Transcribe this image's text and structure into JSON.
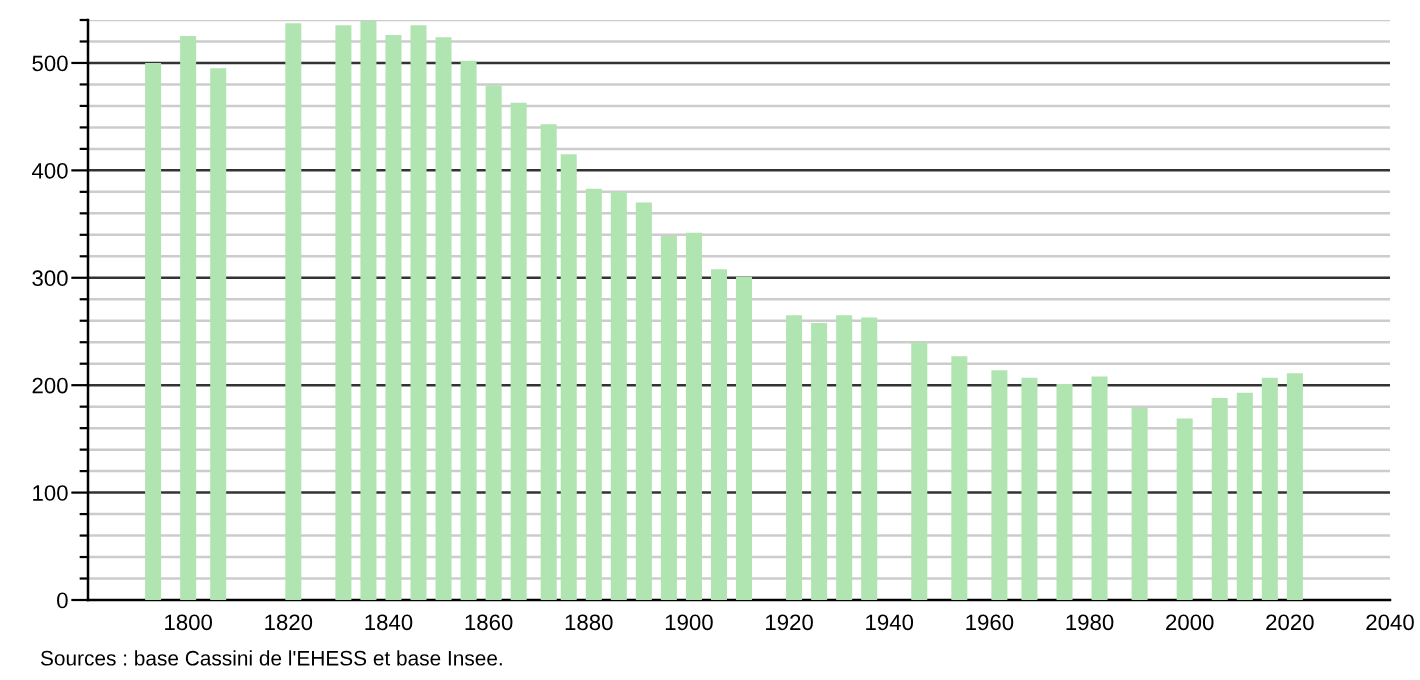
{
  "chart_data": {
    "type": "bar",
    "x": [
      1793,
      1800,
      1806,
      1821,
      1831,
      1836,
      1841,
      1846,
      1851,
      1856,
      1861,
      1866,
      1872,
      1876,
      1881,
      1886,
      1891,
      1896,
      1901,
      1906,
      1911,
      1921,
      1926,
      1931,
      1936,
      1946,
      1954,
      1962,
      1968,
      1975,
      1982,
      1990,
      1999,
      2006,
      2011,
      2016,
      2021
    ],
    "values": [
      500,
      525,
      495,
      537,
      535,
      539,
      526,
      535,
      524,
      502,
      479,
      463,
      443,
      415,
      383,
      380,
      370,
      339,
      342,
      308,
      301,
      265,
      258,
      265,
      263,
      240,
      227,
      214,
      207,
      201,
      208,
      179,
      169,
      188,
      193,
      207,
      211
    ],
    "color": "#b0e4b0",
    "xlim": [
      1780,
      2040
    ],
    "xticks": [
      1800,
      1820,
      1840,
      1860,
      1880,
      1900,
      1920,
      1940,
      1960,
      1980,
      2000,
      2020,
      2040
    ],
    "ylim": [
      0,
      540
    ],
    "yticks": [
      0,
      {
        "value": 20,
        "label": null
      },
      {
        "value": 40,
        "label": null
      },
      {
        "value": 60,
        "label": null
      },
      {
        "value": 80,
        "label": null
      },
      100,
      {
        "value": 120,
        "label": null
      },
      {
        "value": 140,
        "label": null
      },
      {
        "value": 160,
        "label": null
      },
      {
        "value": 180,
        "label": null
      },
      200,
      {
        "value": 220,
        "label": null
      },
      {
        "value": 240,
        "label": null
      },
      {
        "value": 260,
        "label": null
      },
      {
        "value": 280,
        "label": null
      },
      300,
      {
        "value": 320,
        "label": null
      },
      {
        "value": 340,
        "label": null
      },
      {
        "value": 360,
        "label": null
      },
      {
        "value": 380,
        "label": null
      },
      400,
      {
        "value": 420,
        "label": null
      },
      {
        "value": 440,
        "label": null
      },
      {
        "value": 460,
        "label": null
      },
      {
        "value": 480,
        "label": null
      },
      500,
      {
        "value": 520,
        "label": null
      },
      {
        "value": 540,
        "label": null
      }
    ],
    "grid": "y",
    "annotations": [
      "Sources : base Cassini de l'EHESS et base Insee."
    ]
  }
}
